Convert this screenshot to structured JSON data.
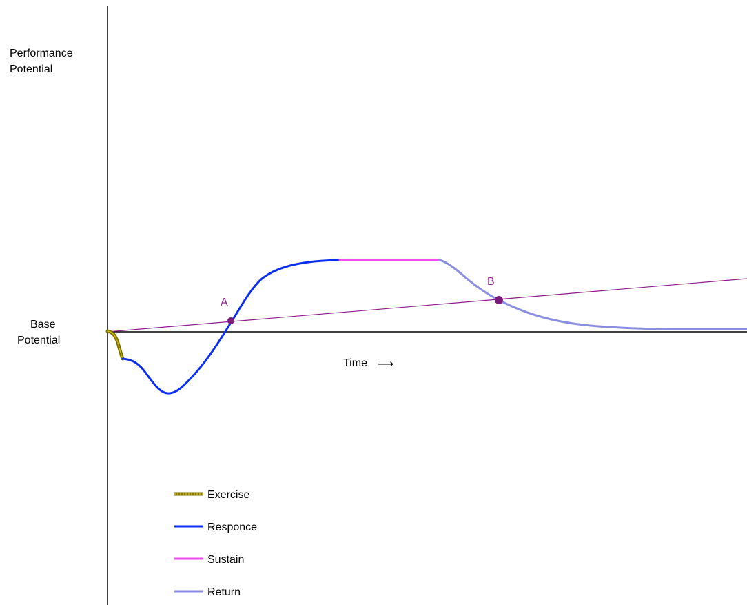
{
  "diagram": {
    "y_axis_label_line1": "Performance",
    "y_axis_label_line2": "Potential",
    "baseline_label_line1": "Base",
    "baseline_label_line2": "Potential",
    "time_label": "Time",
    "time_arrow": "⟶",
    "point_a_label": "A",
    "point_b_label": "B",
    "colors": {
      "axis": "#000000",
      "exercise": "#7a7000",
      "exercise_highlight": "#d4c200",
      "response": "#0a2eef",
      "sustain": "#f24bf0",
      "return": "#8a8ee0",
      "trend": "#8b1f8b",
      "markers": "#7a1a7a"
    }
  },
  "legend": {
    "items": [
      {
        "label": "Exercise",
        "color": "#7a7000"
      },
      {
        "label": "Responce",
        "color": "#0a2eef"
      },
      {
        "label": "Sustain",
        "color": "#f24bf0"
      },
      {
        "label": "Return",
        "color": "#8a8ee0"
      }
    ]
  }
}
